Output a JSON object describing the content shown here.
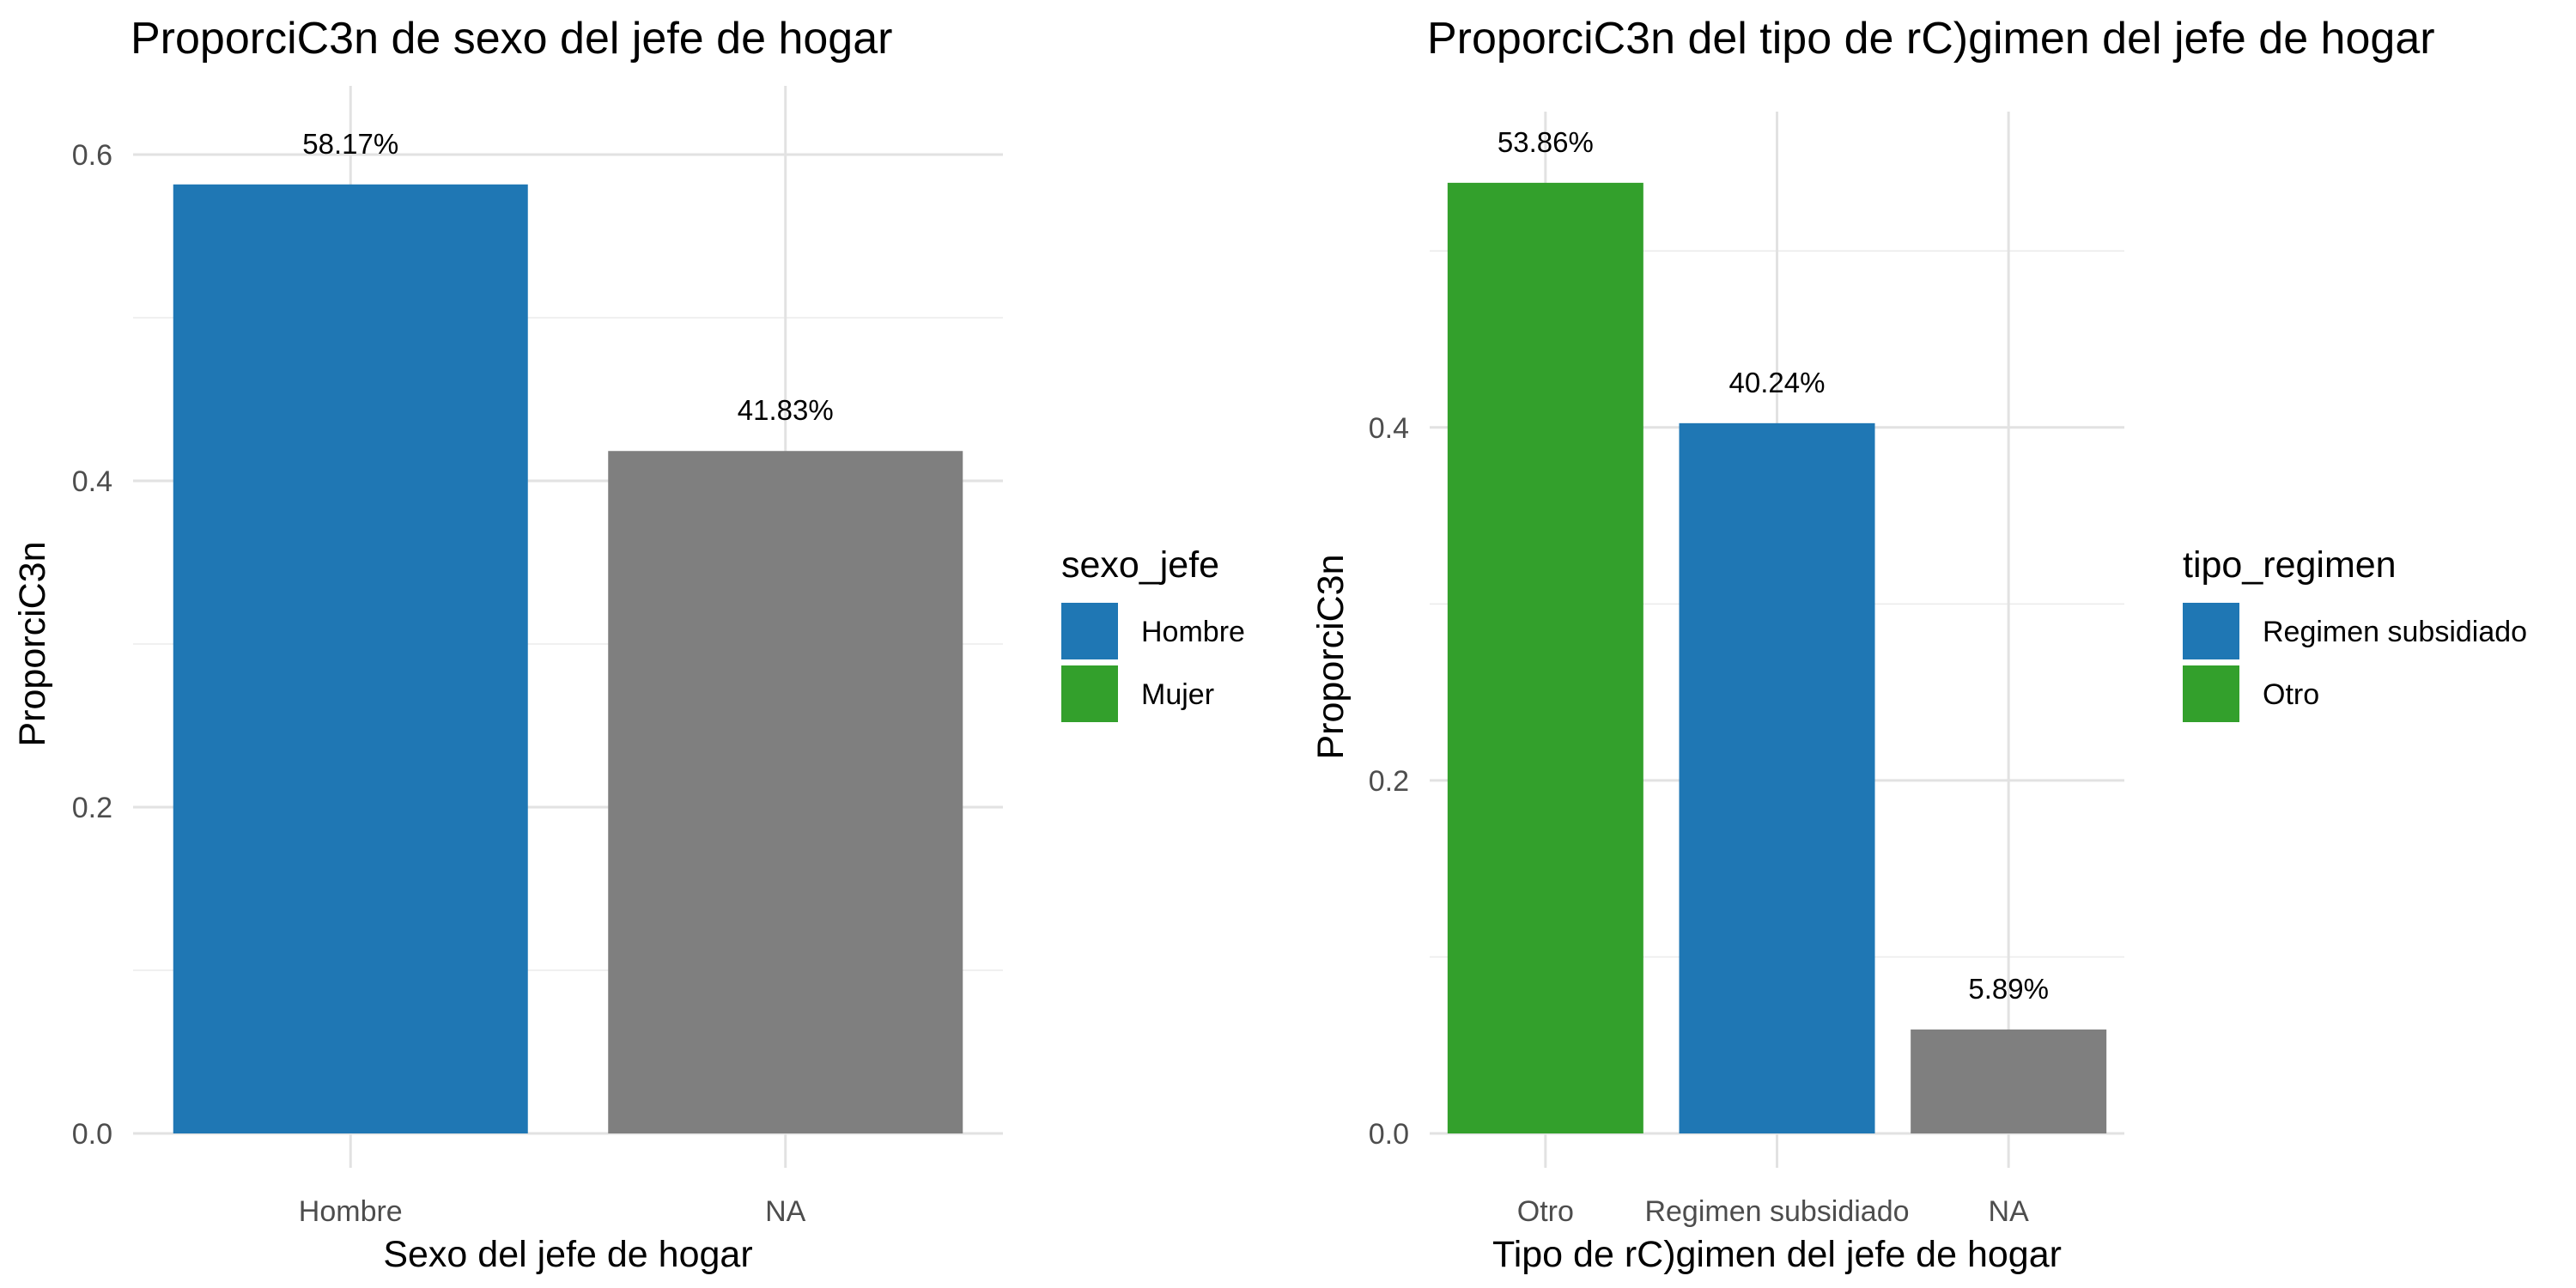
{
  "chart_data": [
    {
      "type": "bar",
      "title": "ProporciC3n de sexo del jefe de hogar",
      "xlabel": "Sexo del jefe de hogar",
      "ylabel": "ProporciC3n",
      "ylim": [
        0,
        0.6
      ],
      "yticks": [
        0.0,
        0.2,
        0.4,
        0.6
      ],
      "ytick_labels": [
        "0.0",
        "0.2",
        "0.4",
        "0.6"
      ],
      "categories": [
        "Hombre",
        "NA"
      ],
      "values": [
        0.5817,
        0.4183
      ],
      "bar_labels": [
        "58.17%",
        "41.83%"
      ],
      "bar_colors": [
        "#1f77b4",
        "#7f7f7f"
      ],
      "grid": true,
      "legend": {
        "title": "sexo_jefe",
        "position": "right",
        "entries": [
          {
            "label": "Hombre",
            "color": "#1f77b4"
          },
          {
            "label": "Mujer",
            "color": "#33a02c"
          }
        ]
      }
    },
    {
      "type": "bar",
      "title": "ProporciC3n del tipo de rC)gimen del jefe de hogar",
      "xlabel": "Tipo de rC)gimen del jefe de hogar",
      "ylabel": "ProporciC3n",
      "ylim": [
        0,
        0.54
      ],
      "yticks": [
        0.0,
        0.2,
        0.4
      ],
      "ytick_labels": [
        "0.0",
        "0.2",
        "0.4"
      ],
      "categories": [
        "Otro",
        "Regimen subsidiado",
        "NA"
      ],
      "values": [
        0.5386,
        0.4024,
        0.0589
      ],
      "bar_labels": [
        "53.86%",
        "40.24%",
        "5.89%"
      ],
      "bar_colors": [
        "#33a02c",
        "#1f77b4",
        "#7f7f7f"
      ],
      "grid": true,
      "legend": {
        "title": "tipo_regimen",
        "position": "right",
        "entries": [
          {
            "label": "Regimen subsidiado",
            "color": "#1f77b4"
          },
          {
            "label": "Otro",
            "color": "#33a02c"
          }
        ]
      }
    }
  ]
}
